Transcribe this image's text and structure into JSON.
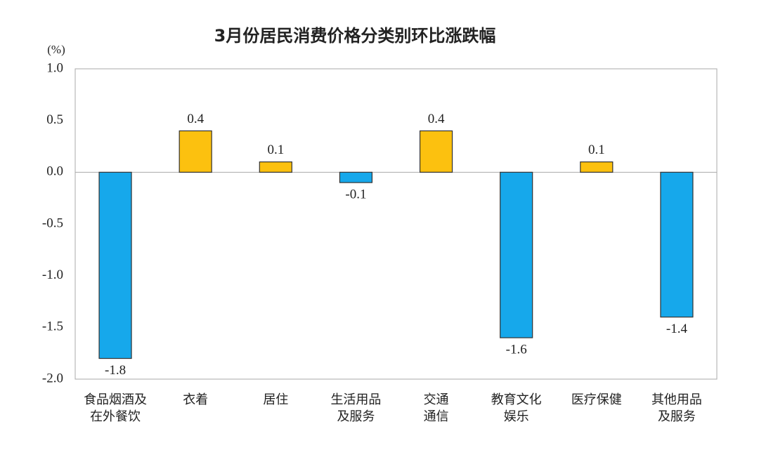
{
  "chart_data": {
    "type": "bar",
    "title": "3月份居民消费价格分类别环比涨跌幅",
    "y_unit": "(%)",
    "categories": [
      "食品烟酒及\n在外餐饮",
      "衣着",
      "居住",
      "生活用品\n及服务",
      "交通\n通信",
      "教育文化\n娱乐",
      "医疗保健",
      "其他用品\n及服务"
    ],
    "values": [
      -1.8,
      0.4,
      0.1,
      -0.1,
      0.4,
      -1.6,
      0.1,
      -1.4
    ],
    "positive_color": "#fcc10f",
    "negative_color": "#16a8eb",
    "ylim": [
      -2,
      1
    ],
    "yticks": [
      {
        "value": 1,
        "label": "1.0"
      },
      0.5,
      {
        "value": 0,
        "label": "0.0"
      },
      -0.5,
      {
        "value": -1,
        "label": "-1.0"
      },
      -1.5,
      {
        "value": -2,
        "label": "-2.0"
      }
    ],
    "grid": false
  }
}
